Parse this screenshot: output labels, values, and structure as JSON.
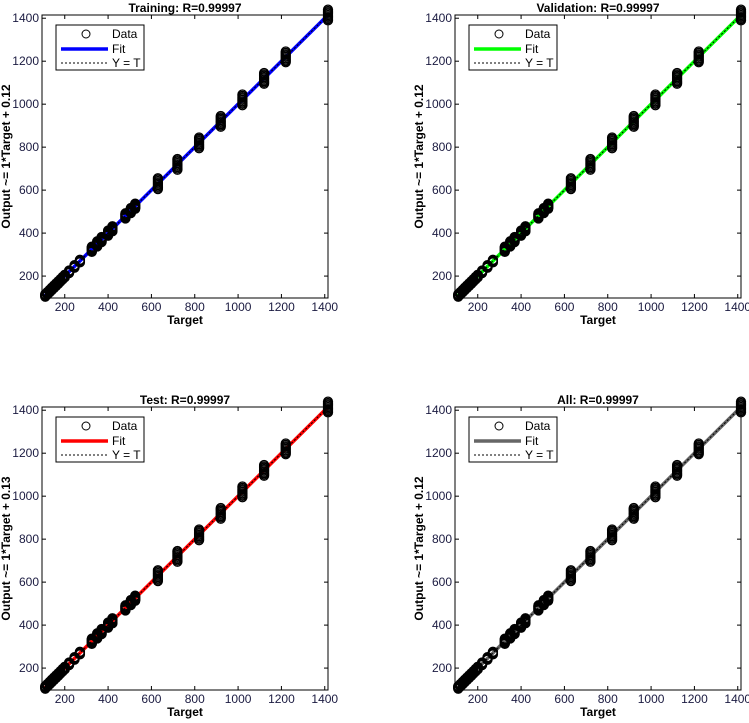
{
  "chart_data": [
    {
      "type": "scatter",
      "title": "Training: R=0.99997",
      "xlabel": "Target",
      "ylabel": "Output ~= 1*Target + 0.12",
      "fit_color": "#0000ff",
      "fit": {
        "slope": 1,
        "intercept": 0.12
      },
      "R": 0.99997
    },
    {
      "type": "scatter",
      "title": "Validation: R=0.99997",
      "xlabel": "Target",
      "ylabel": "Output ~= 1*Target + 0.12",
      "fit_color": "#00ff00",
      "fit": {
        "slope": 1,
        "intercept": 0.12
      },
      "R": 0.99997
    },
    {
      "type": "scatter",
      "title": "Test: R=0.99997",
      "xlabel": "Target",
      "ylabel": "Output ~= 1*Target + 0.13",
      "fit_color": "#ff0000",
      "fit": {
        "slope": 1,
        "intercept": 0.13
      },
      "R": 0.99997
    },
    {
      "type": "scatter",
      "title": "All: R=0.99997",
      "xlabel": "Target",
      "ylabel": "Output ~= 1*Target + 0.12",
      "fit_color": "#666666",
      "fit": {
        "slope": 1,
        "intercept": 0.12
      },
      "R": 0.99997
    }
  ],
  "shared": {
    "xlim": [
      95,
      1415
    ],
    "ylim": [
      98,
      1415
    ],
    "ticks": [
      200,
      400,
      600,
      800,
      1000,
      1200,
      1400
    ],
    "legend": {
      "data": "Data",
      "fit": "Fit",
      "yt": "Y = T",
      "placement": "top-left"
    },
    "targets": [
      110,
      120,
      130,
      140,
      150,
      160,
      170,
      180,
      190,
      200,
      220,
      245,
      270,
      325,
      350,
      370,
      400,
      420,
      480,
      505,
      525,
      630,
      720,
      820,
      920,
      1020,
      1120,
      1220,
      1415
    ],
    "output_spread": [
      [
        -5,
        5
      ]
    ]
  }
}
